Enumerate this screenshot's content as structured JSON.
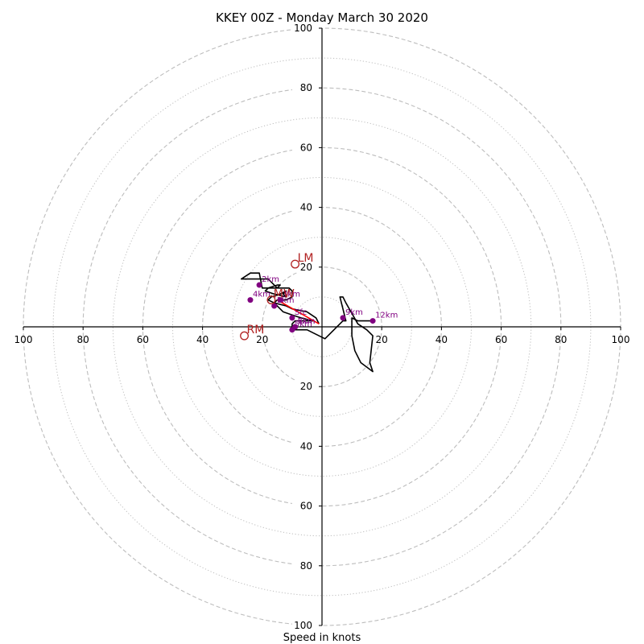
{
  "chart_data": {
    "type": "scatter",
    "title": "KKEY 00Z - Monday March 30 2020",
    "xlabel": "Speed in knots",
    "xlim": [
      -100,
      100
    ],
    "ylim": [
      -100,
      100
    ],
    "solid_rings": [
      20,
      40,
      60,
      80,
      100
    ],
    "dotted_rings": [
      10,
      30,
      50,
      70,
      90
    ],
    "x_tick_labels": [
      "100",
      "80",
      "60",
      "40",
      "20",
      "20",
      "40",
      "60",
      "80",
      "100"
    ],
    "y_tick_labels": [
      "100",
      "80",
      "60",
      "40",
      "20",
      "20",
      "40",
      "60",
      "80",
      "100"
    ],
    "hodograph": {
      "x": [
        -1,
        -2,
        -5,
        -10,
        -12,
        -16,
        -18,
        -17,
        -14,
        -12,
        -13,
        -12,
        -16,
        -19,
        -18,
        -15,
        -14,
        -15,
        -18,
        -22,
        -27,
        -24,
        -21,
        -21,
        -20,
        -18,
        -16,
        -12,
        -11,
        -10,
        -10,
        -12,
        -15,
        -16,
        -13,
        -10,
        -7,
        -3,
        -6,
        -9,
        -10,
        -10,
        -9,
        -5,
        1,
        7,
        8,
        7,
        6,
        7,
        8,
        12,
        15,
        17,
        16,
        17,
        13,
        11,
        10,
        10,
        12,
        15,
        17
      ],
      "y": [
        1,
        3,
        5,
        6,
        7,
        8,
        9,
        10,
        11,
        12,
        11,
        10,
        11,
        12,
        13,
        14,
        14,
        13,
        16,
        16,
        16,
        18,
        18,
        18,
        13,
        13,
        13,
        13,
        13,
        12,
        10,
        9,
        9,
        8,
        5,
        4,
        3,
        2,
        2,
        2,
        1,
        0,
        -1,
        -1,
        -4,
        2,
        2,
        6,
        10,
        10,
        8,
        1,
        -1,
        -3,
        -12,
        -15,
        -12,
        -8,
        -3,
        3,
        2,
        2,
        2
      ]
    },
    "height_points": [
      {
        "label": "Sfc",
        "x": -10,
        "y": 3
      },
      {
        "label": "1km",
        "x": -16,
        "y": 7
      },
      {
        "label": "2km",
        "x": -21,
        "y": 14
      },
      {
        "label": "3km",
        "x": -14,
        "y": 9
      },
      {
        "label": "4km",
        "x": -24,
        "y": 9
      },
      {
        "label": "5km",
        "x": -10,
        "y": -1
      },
      {
        "label": "6km",
        "x": -9,
        "y": 0
      },
      {
        "label": "7km",
        "x": -9,
        "y": 0
      },
      {
        "label": "9km",
        "x": 7,
        "y": 3
      },
      {
        "label": "12km",
        "x": 17,
        "y": 2
      }
    ],
    "storm_motion": [
      {
        "label": "LM",
        "x": -9,
        "y": 21
      },
      {
        "label": "RM",
        "x": -26,
        "y": -3
      },
      {
        "label": "MW",
        "x": -17,
        "y": 9
      }
    ],
    "shear_vector": {
      "from": [
        -1,
        1
      ],
      "to": [
        -15,
        9
      ]
    },
    "colors": {
      "hodograph": "#000000",
      "height_point": "#800080",
      "storm_motion": "#b22222",
      "shear_vector": "#ff0000",
      "grid": "#bdbdbd"
    }
  }
}
